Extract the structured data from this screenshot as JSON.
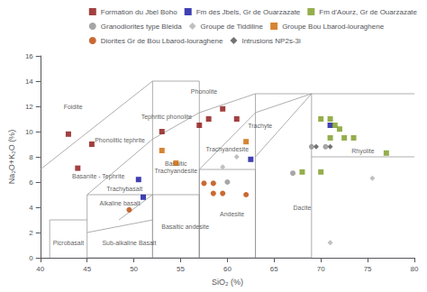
{
  "chart_data": {
    "type": "scatter",
    "xlabel": "SiO₂ (%)",
    "ylabel": "Na₂O+K₂O (%)",
    "xlim": [
      40,
      80
    ],
    "ylim": [
      0,
      16
    ],
    "xticks": [
      40,
      45,
      50,
      55,
      60,
      65,
      70,
      75,
      80
    ],
    "yticks": [
      0,
      2,
      4,
      6,
      8,
      10,
      12,
      14,
      16
    ],
    "grid": false,
    "legend": "upper right",
    "boundaries": {
      "color": "#999999",
      "segments": [
        {
          "x": [
            41,
            45
          ],
          "y": [
            3,
            3
          ]
        },
        {
          "x": [
            41,
            41
          ],
          "y": [
            0,
            3
          ]
        },
        {
          "x": [
            40,
            52
          ],
          "y": [
            7,
            14
          ]
        },
        {
          "x": [
            45,
            45
          ],
          "y": [
            0,
            5
          ]
        },
        {
          "x": [
            45,
            52
          ],
          "y": [
            5,
            9.4
          ]
        },
        {
          "x": [
            52,
            57
          ],
          "y": [
            9.4,
            11.5
          ]
        },
        {
          "x": [
            52,
            57
          ],
          "y": [
            14,
            14
          ]
        },
        {
          "x": [
            57,
            57
          ],
          "y": [
            11.5,
            14
          ]
        },
        {
          "x": [
            57,
            63
          ],
          "y": [
            11.5,
            13
          ]
        },
        {
          "x": [
            63,
            69
          ],
          "y": [
            13,
            13
          ]
        },
        {
          "x": [
            63,
            63
          ],
          "y": [
            0,
            13
          ]
        },
        {
          "x": [
            52,
            52
          ],
          "y": [
            0,
            14
          ]
        },
        {
          "x": [
            57,
            57
          ],
          "y": [
            0,
            11.5
          ]
        },
        {
          "x": [
            63,
            69
          ],
          "y": [
            11.5,
            13
          ]
        },
        {
          "x": [
            69,
            80
          ],
          "y": [
            13,
            13
          ]
        },
        {
          "x": [
            69,
            69
          ],
          "y": [
            0,
            13
          ]
        },
        {
          "x": [
            69,
            80
          ],
          "y": [
            8,
            8
          ]
        },
        {
          "x": [
            63,
            63
          ],
          "y": [
            0,
            7
          ]
        },
        {
          "x": [
            57,
            63
          ],
          "y": [
            7,
            7
          ]
        },
        {
          "x": [
            57,
            57
          ],
          "y": [
            0,
            7
          ]
        },
        {
          "x": [
            52,
            57
          ],
          "y": [
            5,
            5
          ]
        },
        {
          "x": [
            45,
            52
          ],
          "y": [
            5,
            5
          ]
        },
        {
          "x": [
            48.4,
            52
          ],
          "y": [
            3,
            5
          ]
        },
        {
          "x": [
            45,
            52
          ],
          "y": [
            2,
            3
          ]
        },
        {
          "x": [
            52,
            52
          ],
          "y": [
            0,
            5
          ]
        },
        {
          "x": [
            52,
            57
          ],
          "y": [
            0,
            0
          ]
        },
        {
          "x": [
            57,
            63
          ],
          "y": [
            0,
            0
          ]
        },
        {
          "x": [
            63,
            69
          ],
          "y": [
            0,
            0
          ]
        },
        {
          "x": [
            45,
            52
          ],
          "y": [
            0,
            0
          ]
        },
        {
          "x": [
            57,
            57
          ],
          "y": [
            0,
            5
          ]
        },
        {
          "x": [
            63,
            63
          ],
          "y": [
            0,
            7
          ]
        },
        {
          "x": [
            57,
            63
          ],
          "y": [
            7,
            11.5
          ]
        },
        {
          "x": [
            63,
            69
          ],
          "y": [
            8,
            13
          ]
        }
      ]
    },
    "annotations": [
      {
        "text": "Foidite",
        "x": 43.5,
        "y": 12.0
      },
      {
        "text": "Phonolite",
        "x": 57.5,
        "y": 13.2
      },
      {
        "text": "Tephritic phonolite",
        "x": 53.5,
        "y": 11.2
      },
      {
        "text": "Phonolitic tephrite",
        "x": 48.5,
        "y": 9.3
      },
      {
        "text": "Trachyte",
        "x": 63.5,
        "y": 10.5
      },
      {
        "text": "Trachyandesite",
        "x": 60.0,
        "y": 8.6
      },
      {
        "text": "Basaltic",
        "x": 54.5,
        "y": 7.5
      },
      {
        "text": "Trachyandesite",
        "x": 54.5,
        "y": 6.9
      },
      {
        "text": "Trachybasalt",
        "x": 49.0,
        "y": 5.5
      },
      {
        "text": "Alkaline basalt",
        "x": 48.5,
        "y": 4.3
      },
      {
        "text": "Basanite - Tephrite",
        "x": 46.2,
        "y": 6.5
      },
      {
        "text": "Picrobasalt",
        "x": 43.0,
        "y": 1.2
      },
      {
        "text": "Sub-alkaline Basalt",
        "x": 49.5,
        "y": 1.2
      },
      {
        "text": "Basaltic andesite",
        "x": 55.5,
        "y": 2.5
      },
      {
        "text": "Andesite",
        "x": 60.5,
        "y": 3.5
      },
      {
        "text": "Dacite",
        "x": 68.0,
        "y": 4.0
      },
      {
        "text": "Rhyolite",
        "x": 74.5,
        "y": 8.5
      }
    ],
    "series": [
      {
        "name": "Formation du Jbel Boho",
        "color": "#8B1010",
        "marker": "square",
        "values": [
          [
            43.0,
            9.8
          ],
          [
            44.0,
            7.1
          ],
          [
            45.5,
            9.0
          ],
          [
            53.0,
            10.0
          ],
          [
            57.0,
            10.5
          ],
          [
            58.0,
            11.0
          ],
          [
            59.5,
            11.8
          ],
          [
            61.0,
            11.0
          ]
        ]
      },
      {
        "name": "Fm des Jbels, Gr de Ouarzazate",
        "color": "#1010A0",
        "marker": "square",
        "values": [
          [
            50.5,
            6.2
          ],
          [
            51.0,
            4.8
          ],
          [
            62.5,
            7.8
          ],
          [
            71.0,
            10.5
          ]
        ]
      },
      {
        "name": "Fm d'Aourz, Gr de Ouarzazate",
        "color": "#7A9A20",
        "marker": "square",
        "values": [
          [
            70.0,
            11.0
          ],
          [
            71.0,
            11.0
          ],
          [
            71.5,
            10.5
          ],
          [
            72.0,
            10.2
          ],
          [
            71.0,
            9.5
          ],
          [
            72.5,
            9.5
          ],
          [
            73.5,
            9.5
          ],
          [
            68.0,
            6.8
          ],
          [
            70.0,
            6.8
          ],
          [
            77.0,
            8.3
          ]
        ]
      },
      {
        "name": "Granodiorites type Bleida",
        "color": "#909090",
        "marker": "circle",
        "values": [
          [
            60.0,
            6.0
          ],
          [
            67.0,
            6.7
          ],
          [
            69.0,
            8.8
          ],
          [
            70.5,
            8.8
          ]
        ]
      },
      {
        "name": "Groupe de Tiddiline",
        "color": "#B0B0B0",
        "marker": "diamond",
        "values": [
          [
            59.5,
            7.2
          ],
          [
            61.0,
            8.0
          ],
          [
            75.5,
            6.3
          ],
          [
            71.0,
            1.2
          ]
        ]
      },
      {
        "name": "Groupe Bou Lbarod-louraghene",
        "color": "#CC6600",
        "marker": "square",
        "values": [
          [
            53.0,
            8.5
          ],
          [
            54.5,
            7.5
          ],
          [
            62.0,
            9.2
          ]
        ]
      },
      {
        "name": "Diorites Gr de Bou Lbarod-louraghene",
        "color": "#BB4400",
        "marker": "circle",
        "values": [
          [
            49.5,
            3.8
          ],
          [
            57.5,
            5.9
          ],
          [
            58.5,
            5.9
          ],
          [
            58.5,
            5.1
          ],
          [
            59.5,
            5.1
          ],
          [
            62.0,
            5.0
          ]
        ]
      },
      {
        "name": "Intrusions NP2s-3i",
        "color": "#505050",
        "marker": "diamond",
        "values": [
          [
            69.5,
            8.8
          ],
          [
            71.0,
            8.8
          ]
        ]
      }
    ]
  }
}
